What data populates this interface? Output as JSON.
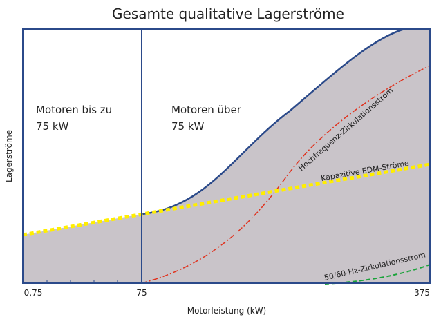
{
  "chart_data": {
    "type": "area",
    "title": "Gesamte qualitative Lagerströme",
    "x_label": "Motorleistung (kW)",
    "y_label": "Lagerströme",
    "xtick_labels": [
      "0,75",
      "75",
      "375"
    ],
    "regions": [
      {
        "lines": [
          "Motoren bis zu",
          "75 kW"
        ]
      },
      {
        "lines": [
          "Motoren über",
          "75 kW"
        ]
      }
    ],
    "curve_labels": {
      "hf": "Hochfrequenz-Zirkulationsstrom",
      "edm": "Kapazitive EDM-Ströme",
      "lf": "50/60-Hz-Zirkulationsstrom"
    }
  }
}
